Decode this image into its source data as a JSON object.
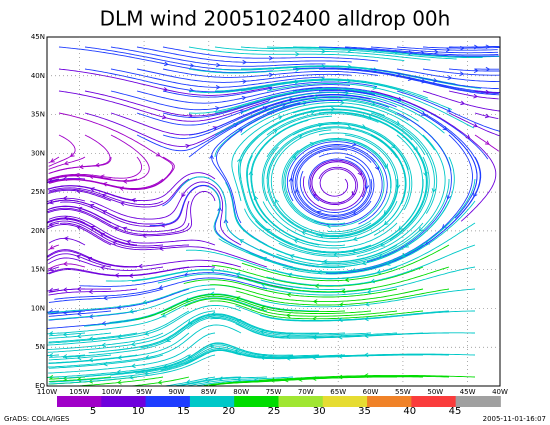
{
  "header": {
    "title": "DLM wind 2005102400 alldrop 00h"
  },
  "map": {
    "lat_labels": [
      "EQ",
      "5N",
      "10N",
      "15N",
      "20N",
      "25N",
      "30N",
      "35N",
      "40N",
      "45N"
    ],
    "lon_labels": [
      "110W",
      "105W",
      "100W",
      "95W",
      "90W",
      "85W",
      "80W",
      "75W",
      "70W",
      "65W",
      "60W",
      "55W",
      "50W",
      "45W",
      "40W"
    ]
  },
  "colorbar": {
    "labels": [
      5,
      10,
      15,
      20,
      25,
      30,
      35,
      40,
      45
    ],
    "colors": [
      "#a000c8",
      "#6e00dc",
      "#1e3cff",
      "#00c8c8",
      "#00dc00",
      "#a0e632",
      "#e6dc32",
      "#f08228",
      "#fa3c3c",
      "#a0a0a0"
    ]
  },
  "footer": {
    "left": "GrADS: COLA/IGES",
    "right": "2005-11-01-16:07"
  }
}
